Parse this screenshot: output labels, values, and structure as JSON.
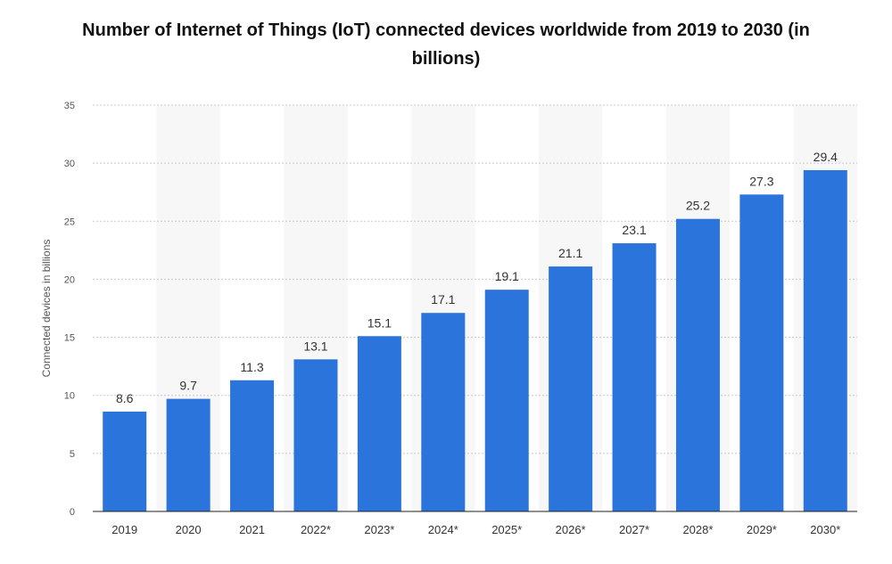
{
  "chart_data": {
    "type": "bar",
    "title": "Number of Internet of Things (IoT) connected devices worldwide from 2019 to 2030 (in billions)",
    "xlabel": "",
    "ylabel": "Connected devices in billions",
    "categories": [
      "2019",
      "2020",
      "2021",
      "2022*",
      "2023*",
      "2024*",
      "2025*",
      "2026*",
      "2027*",
      "2028*",
      "2029*",
      "2030*"
    ],
    "values": [
      8.6,
      9.7,
      11.3,
      13.1,
      15.1,
      17.1,
      19.1,
      21.1,
      23.1,
      25.2,
      27.3,
      29.4
    ],
    "value_labels": [
      "8.6",
      "9.7",
      "11.3",
      "13.1",
      "15.1",
      "17.1",
      "19.1",
      "21.1",
      "23.1",
      "25.2",
      "27.3",
      "29.4"
    ],
    "ylim": [
      0,
      35
    ],
    "yticks": [
      "0",
      "5",
      "10",
      "15",
      "20",
      "25",
      "30",
      "35"
    ],
    "grid": true,
    "colors": {
      "bar": "#2a74dc",
      "band": "#f7f7f7",
      "grid": "#c8c8c8",
      "axis": "#222222",
      "label": "#333333",
      "tick": "#555555"
    }
  }
}
